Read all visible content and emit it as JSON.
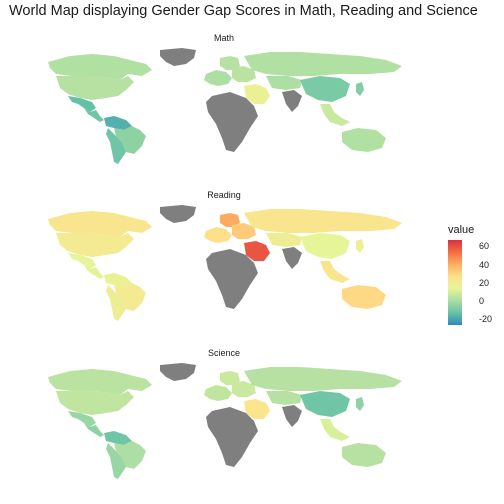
{
  "title": "World Map displaying Gender Gap Scores in Math, Reading and Science",
  "panels": [
    {
      "label": "Math"
    },
    {
      "label": "Reading"
    },
    {
      "label": "Science"
    }
  ],
  "legend": {
    "title": "value",
    "ticks": [
      "60",
      "40",
      "20",
      "0",
      "-20"
    ],
    "scale_min": -25,
    "scale_max": 68,
    "colors": [
      "#d7303f",
      "#f46d43",
      "#fdae61",
      "#fee08b",
      "#e6f598",
      "#abdda4",
      "#66c2a5",
      "#3288bd"
    ]
  },
  "no_data_color": "#7f7f7f",
  "chart_data": [
    {
      "type": "map",
      "title": "Math",
      "region_values": {
        "canada": 3,
        "usa": 4,
        "mexico": -12,
        "central_america": -10,
        "northern_south_america": -16,
        "brazil": -4,
        "southern_cone": -10,
        "greenland": null,
        "europe_west": 2,
        "scandinavia": 4,
        "eastern_europe": 5,
        "russia": 3,
        "middle_east": 18,
        "central_asia": 2,
        "china": -8,
        "india": null,
        "southeast_asia": 8,
        "australia": 3,
        "africa": null,
        "japan": -6
      }
    },
    {
      "type": "map",
      "title": "Reading",
      "region_values": {
        "canada": 25,
        "usa": 22,
        "mexico": 15,
        "central_america": 14,
        "northern_south_america": 18,
        "brazil": 22,
        "southern_cone": 20,
        "greenland": null,
        "europe_west": 28,
        "scandinavia": 42,
        "eastern_europe": 34,
        "russia": 25,
        "middle_east": 60,
        "central_asia": 20,
        "china": 15,
        "india": null,
        "southeast_asia": 25,
        "australia": 30,
        "africa": null,
        "japan": 18
      }
    },
    {
      "type": "map",
      "title": "Science",
      "region_values": {
        "canada": 5,
        "usa": 6,
        "mexico": -2,
        "central_america": -4,
        "northern_south_america": -10,
        "brazil": 2,
        "southern_cone": -2,
        "greenland": null,
        "europe_west": 6,
        "scandinavia": 8,
        "eastern_europe": 8,
        "russia": 4,
        "middle_east": 25,
        "central_asia": 4,
        "china": -10,
        "india": null,
        "southeast_asia": 12,
        "australia": 4,
        "africa": null,
        "japan": -4
      }
    }
  ]
}
